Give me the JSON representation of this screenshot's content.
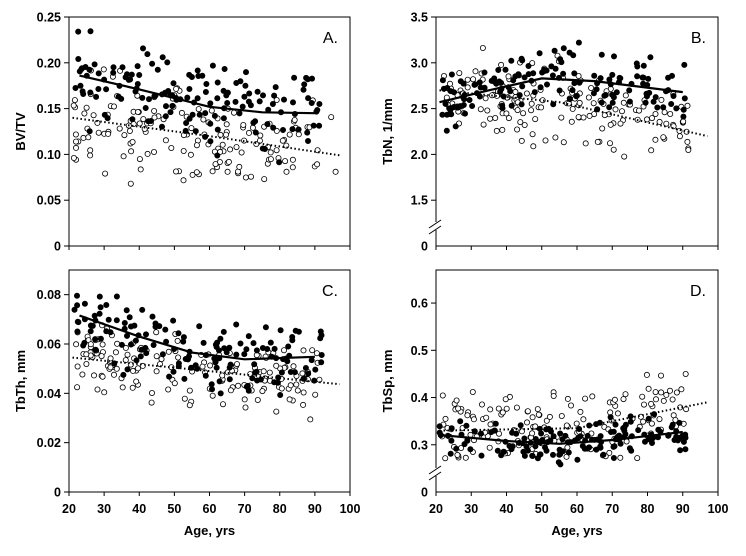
{
  "chart_data": [
    {
      "type": "scatter",
      "panel_label": "A.",
      "xlabel": "",
      "ylabel": "BV/TV",
      "xlim": [
        20,
        100
      ],
      "ylim": [
        0,
        0.25
      ],
      "yticks": [
        "0",
        "0.05",
        "0.10",
        "0.15",
        "0.20",
        "0.25"
      ],
      "xticks": [],
      "axis_break": false,
      "series": [
        {
          "marker": "filled",
          "trend_style": "solid",
          "trend": [
            [
              23,
              0.186
            ],
            [
              40,
              0.171
            ],
            [
              60,
              0.152
            ],
            [
              75,
              0.146
            ],
            [
              90,
              0.145
            ]
          ],
          "seed": 11,
          "n": 150,
          "spread": 0.032,
          "ymin": 0.04,
          "ymax": 0.235
        },
        {
          "marker": "open",
          "trend_style": "dotted",
          "trend": [
            [
              21,
              0.14
            ],
            [
              60,
              0.12
            ],
            [
              97,
              0.099
            ]
          ],
          "seed": 23,
          "n": 160,
          "spread": 0.038,
          "ymin": 0.028,
          "ymax": 0.22
        }
      ]
    },
    {
      "type": "scatter",
      "panel_label": "B.",
      "xlabel": "",
      "ylabel": "TbN, 1/mm",
      "xlim": [
        20,
        100
      ],
      "ylim": [
        1.0,
        3.5
      ],
      "yticks": [
        "1.5",
        "2.0",
        "2.5",
        "3.0",
        "3.5"
      ],
      "xticks": [],
      "axis_break": true,
      "series": [
        {
          "marker": "filled",
          "trend_style": "solid",
          "trend": [
            [
              21,
              2.57
            ],
            [
              35,
              2.7
            ],
            [
              50,
              2.83
            ],
            [
              65,
              2.8
            ],
            [
              90,
              2.68
            ]
          ],
          "seed": 37,
          "n": 150,
          "spread": 0.22,
          "ymin": 2.2,
          "ymax": 3.38
        },
        {
          "marker": "open",
          "trend_style": "dotted",
          "trend": [
            [
              21,
              2.7
            ],
            [
              55,
              2.57
            ],
            [
              97,
              2.2
            ]
          ],
          "seed": 41,
          "n": 160,
          "spread": 0.3,
          "ymin": 1.45,
          "ymax": 3.2
        }
      ]
    },
    {
      "type": "scatter",
      "panel_label": "C.",
      "xlabel": "Age, yrs",
      "ylabel": "TbTh, mm",
      "xlim": [
        20,
        100
      ],
      "ylim": [
        0,
        0.09
      ],
      "yticks": [
        "0",
        "0.02",
        "0.04",
        "0.06",
        "0.08"
      ],
      "xticks": [
        "20",
        "30",
        "40",
        "50",
        "60",
        "70",
        "80",
        "90",
        "100"
      ],
      "axis_break": false,
      "series": [
        {
          "marker": "filled",
          "trend_style": "solid",
          "trend": [
            [
              23,
              0.0715
            ],
            [
              40,
              0.063
            ],
            [
              55,
              0.0565
            ],
            [
              70,
              0.0538
            ],
            [
              90,
              0.0548
            ]
          ],
          "seed": 53,
          "n": 150,
          "spread": 0.011,
          "ymin": 0.03,
          "ymax": 0.083
        },
        {
          "marker": "open",
          "trend_style": "dotted",
          "trend": [
            [
              21,
              0.0545
            ],
            [
              60,
              0.049
            ],
            [
              97,
              0.0437
            ]
          ],
          "seed": 67,
          "n": 160,
          "spread": 0.01,
          "ymin": 0.017,
          "ymax": 0.078
        }
      ]
    },
    {
      "type": "scatter",
      "panel_label": "D.",
      "xlabel": "Age, yrs",
      "ylabel": "TbSp, mm",
      "xlim": [
        20,
        100
      ],
      "ylim": [
        0.2,
        0.67
      ],
      "yticks": [
        "0.3",
        "0.4",
        "0.5",
        "0.6"
      ],
      "xticks": [
        "20",
        "30",
        "40",
        "50",
        "60",
        "70",
        "80",
        "90",
        "100"
      ],
      "axis_break": true,
      "series": [
        {
          "marker": "filled",
          "trend_style": "solid",
          "trend": [
            [
              22,
              0.32
            ],
            [
              40,
              0.308
            ],
            [
              55,
              0.302
            ],
            [
              70,
              0.31
            ],
            [
              90,
              0.327
            ]
          ],
          "seed": 71,
          "n": 150,
          "spread": 0.028,
          "ymin": 0.255,
          "ymax": 0.45
        },
        {
          "marker": "open",
          "trend_style": "dotted",
          "trend": [
            [
              21,
              0.33
            ],
            [
              60,
              0.335
            ],
            [
              97,
              0.39
            ]
          ],
          "seed": 83,
          "n": 160,
          "spread": 0.055,
          "ymin": 0.27,
          "ymax": 0.66
        }
      ]
    }
  ]
}
